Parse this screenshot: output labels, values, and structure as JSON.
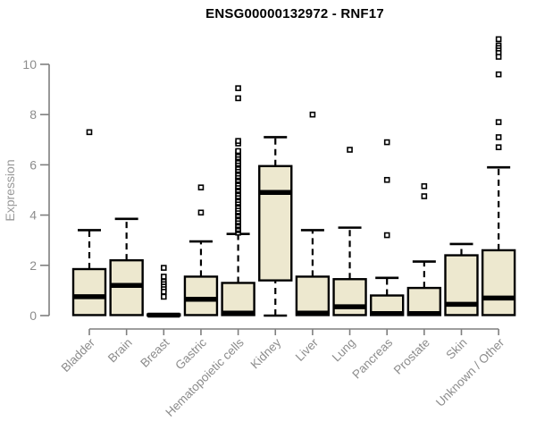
{
  "chart_data": {
    "type": "boxplot",
    "title": "ENSG00000132972 - RNF17",
    "ylabel": "Expression",
    "xlabel": "",
    "ylim": [
      0,
      10
    ],
    "y_ticks": [
      0,
      2,
      4,
      6,
      8,
      10
    ],
    "grid": false,
    "legend": false,
    "categories": [
      "Bladder",
      "Brain",
      "Breast",
      "Gastric",
      "Hematopoietic cells",
      "Kidney",
      "Liver",
      "Lung",
      "Pancreas",
      "Prostate",
      "Skin",
      "Unknown / Other"
    ],
    "boxes": [
      {
        "label": "Bladder",
        "low": 0,
        "q1": 0.02,
        "median": 0.75,
        "q3": 1.85,
        "high": 3.4,
        "outliers": [
          7.3
        ]
      },
      {
        "label": "Brain",
        "low": 0,
        "q1": 0.02,
        "median": 1.2,
        "q3": 2.2,
        "high": 3.85,
        "outliers": []
      },
      {
        "label": "Breast",
        "low": 0,
        "q1": 0.0,
        "median": 0.02,
        "q3": 0.05,
        "high": 0.05,
        "outliers": [
          1.9,
          1.55,
          1.35,
          1.25,
          1.15,
          1.05,
          0.95,
          0.75
        ]
      },
      {
        "label": "Gastric",
        "low": 0,
        "q1": 0.02,
        "median": 0.65,
        "q3": 1.55,
        "high": 2.95,
        "outliers": [
          5.1,
          4.1
        ]
      },
      {
        "label": "Hematopoietic cells",
        "low": 0,
        "q1": 0.02,
        "median": 0.1,
        "q3": 1.3,
        "high": 3.25,
        "outliers": [
          3.3,
          3.4,
          3.45,
          3.55,
          3.6,
          3.7,
          3.75,
          3.85,
          3.95,
          4.0,
          4.1,
          4.15,
          4.25,
          4.35,
          4.45,
          4.5,
          4.6,
          4.7,
          4.75,
          4.85,
          4.95,
          5.0,
          5.1,
          5.15,
          5.25,
          5.35,
          5.4,
          5.5,
          5.55,
          5.65,
          5.75,
          5.8,
          5.9,
          6.0,
          6.05,
          6.15,
          6.25,
          6.3,
          6.4,
          6.5,
          6.55,
          6.85,
          6.95,
          8.65,
          9.05
        ]
      },
      {
        "label": "Kidney",
        "low": 0,
        "q1": 1.4,
        "median": 4.9,
        "q3": 5.95,
        "high": 7.1,
        "outliers": []
      },
      {
        "label": "Liver",
        "low": 0,
        "q1": 0.02,
        "median": 0.1,
        "q3": 1.55,
        "high": 3.4,
        "outliers": [
          8.0
        ]
      },
      {
        "label": "Lung",
        "low": 0,
        "q1": 0.02,
        "median": 0.35,
        "q3": 1.45,
        "high": 3.5,
        "outliers": [
          6.6
        ]
      },
      {
        "label": "Pancreas",
        "low": 0,
        "q1": 0.02,
        "median": 0.08,
        "q3": 0.8,
        "high": 1.5,
        "outliers": [
          6.9,
          5.4,
          3.2
        ]
      },
      {
        "label": "Prostate",
        "low": 0,
        "q1": 0.02,
        "median": 0.08,
        "q3": 1.1,
        "high": 2.15,
        "outliers": [
          5.15,
          4.75
        ]
      },
      {
        "label": "Skin",
        "low": 0,
        "q1": 0.02,
        "median": 0.45,
        "q3": 2.4,
        "high": 2.85,
        "outliers": []
      },
      {
        "label": "Unknown / Other",
        "low": 0,
        "q1": 0.02,
        "median": 0.7,
        "q3": 2.6,
        "high": 5.9,
        "outliers": [
          11.0,
          10.75,
          10.65,
          10.55,
          10.45,
          10.3,
          9.6,
          7.7,
          7.1,
          6.7
        ]
      }
    ],
    "colors": {
      "box_fill": "#EDE8CF",
      "box_stroke": "#000000",
      "axis_color": "#7f7f7f",
      "tick_label_color": "#8c8c8c",
      "axis_label_color": "#999999",
      "title_color": "#000000",
      "background": "#ffffff",
      "outlier_fill": "#ffffff"
    }
  }
}
